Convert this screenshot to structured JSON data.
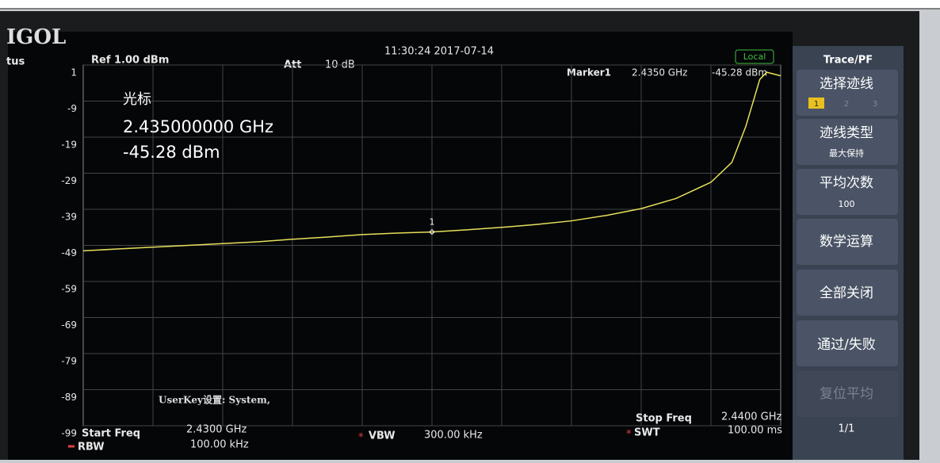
{
  "chart_data": {
    "type": "line",
    "xlim": [
      2.43,
      2.44
    ],
    "ylim": [
      -99,
      1
    ],
    "yticks": [
      1,
      -9,
      -19,
      -29,
      -39,
      -49,
      -59,
      -69,
      -79,
      -89,
      -99
    ],
    "grid": true,
    "x": [
      2.43,
      2.4305,
      2.431,
      2.4315,
      2.432,
      2.4325,
      2.433,
      2.4335,
      2.434,
      2.4345,
      2.435,
      2.4355,
      2.436,
      2.4365,
      2.437,
      2.4375,
      2.438,
      2.4385,
      2.439,
      2.4393,
      2.4395,
      2.4397,
      2.4398,
      2.44
    ],
    "series": [
      {
        "color": "#e6e05a",
        "values": [
          -50.5,
          -50,
          -49.5,
          -49,
          -48.5,
          -48,
          -47.3,
          -46.7,
          -46,
          -45.6,
          -45.28,
          -44.7,
          -44,
          -43.2,
          -42.2,
          -40.7,
          -38.8,
          -36,
          -31.5,
          -26,
          -16,
          -3,
          -1,
          -2
        ]
      }
    ],
    "marker": {
      "x": 2.435,
      "value": -45.28,
      "label": "1"
    }
  },
  "header": {
    "logo": "IGOL",
    "status": "tus",
    "ref": "Ref 1.00 dBm",
    "att": "Att",
    "att_value": "10 dB",
    "time": "11:30:24 2017-07-14",
    "local": "Local",
    "marker": "Marker1",
    "marker_freq": "2.4350 GHz",
    "marker_level": "-45.28 dBm"
  },
  "marker_box": {
    "title": "光标",
    "freq": "2.435000000 GHz",
    "level": "-45.28 dBm"
  },
  "userkey": "UserKey设置:  System,",
  "footer": {
    "start_label": "Start Freq",
    "start_value": "2.4300 GHz",
    "rbw_label": "RBW",
    "rbw_value": "100.00 kHz",
    "vbw_label": "VBW",
    "vbw_value": "300.00 kHz",
    "stop_label": "Stop Freq",
    "stop_value": "2.4400 GHz",
    "swt_label": "SWT",
    "swt_value": "100.00 ms"
  },
  "softkeys": {
    "title": "Trace/PF",
    "select": "选择迹线",
    "traces": [
      "1",
      "2",
      "3"
    ],
    "type": "迹线类型",
    "type_value": "最大保持",
    "avg": "平均次数",
    "avg_value": "100",
    "math": "数学运算",
    "all_off": "全部关闭",
    "pass_fail": "通过/失败",
    "reset_avg": "复位平均",
    "page": "1/1"
  }
}
